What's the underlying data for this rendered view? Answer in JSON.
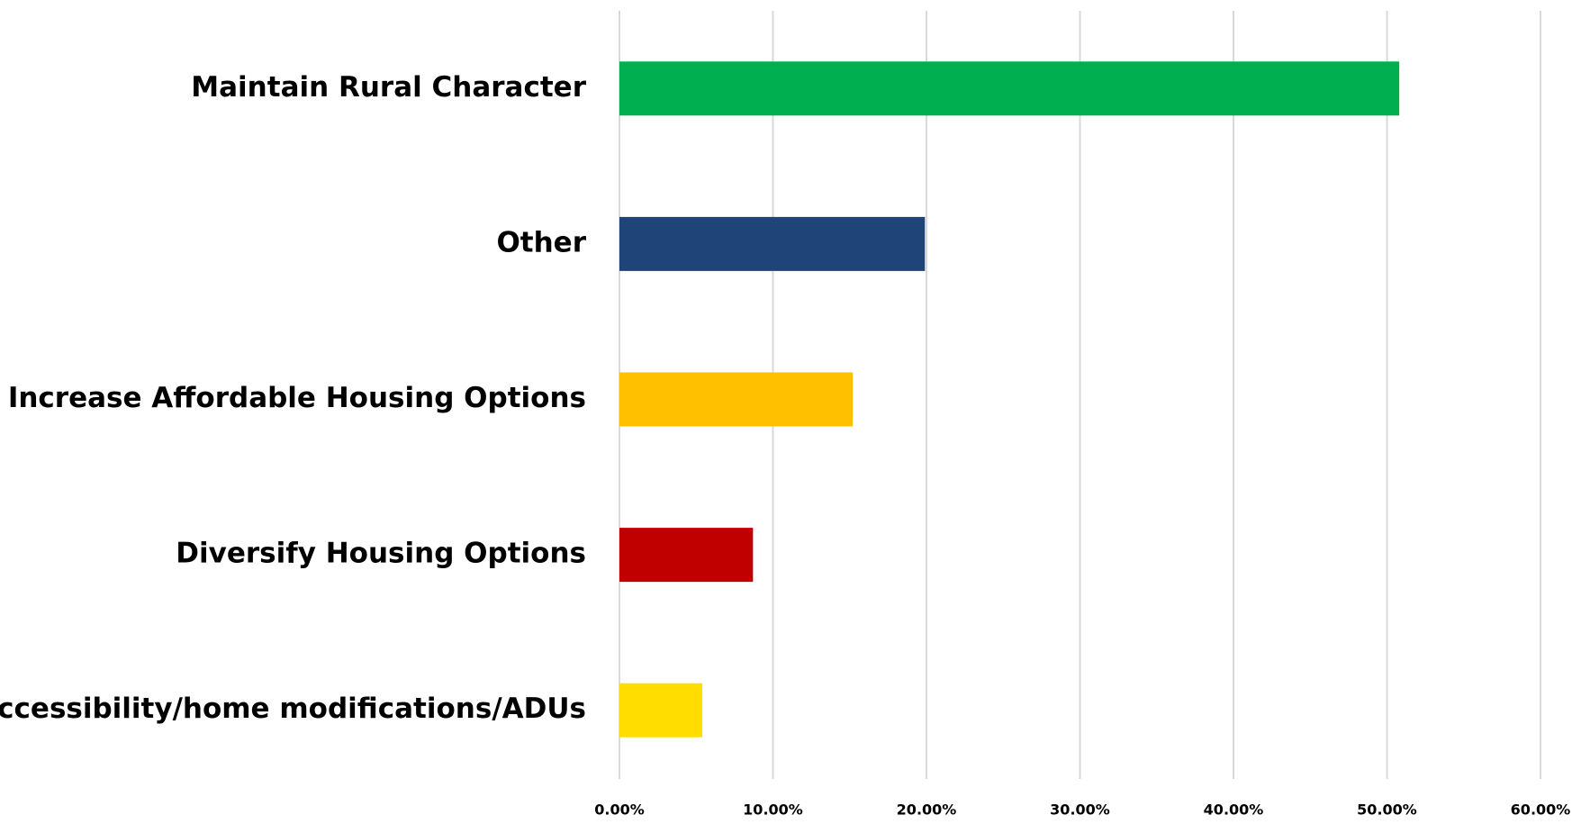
{
  "chart_data": {
    "type": "bar",
    "orientation": "horizontal",
    "categories": [
      "Maintain Rural Character",
      "Other",
      "Increase Affordable Housing Options",
      "Diversify Housing Options",
      "Accessibility/home modifications/ADUs"
    ],
    "values": [
      50.8,
      19.9,
      15.2,
      8.7,
      5.4
    ],
    "colors": [
      "#00b050",
      "#1f4478",
      "#ffc000",
      "#c00000",
      "#ffdd00"
    ],
    "xlim": [
      0,
      60
    ],
    "xticks": [
      {
        "value": 0,
        "label": "0.00%"
      },
      {
        "value": 10,
        "label": "10.00%"
      },
      {
        "value": 20,
        "label": "20.00%"
      },
      {
        "value": 30,
        "label": "30.00%"
      },
      {
        "value": 40,
        "label": "40.00%"
      },
      {
        "value": 50,
        "label": "50.00%"
      },
      {
        "value": 60,
        "label": "60.00%"
      }
    ],
    "grid": true
  }
}
